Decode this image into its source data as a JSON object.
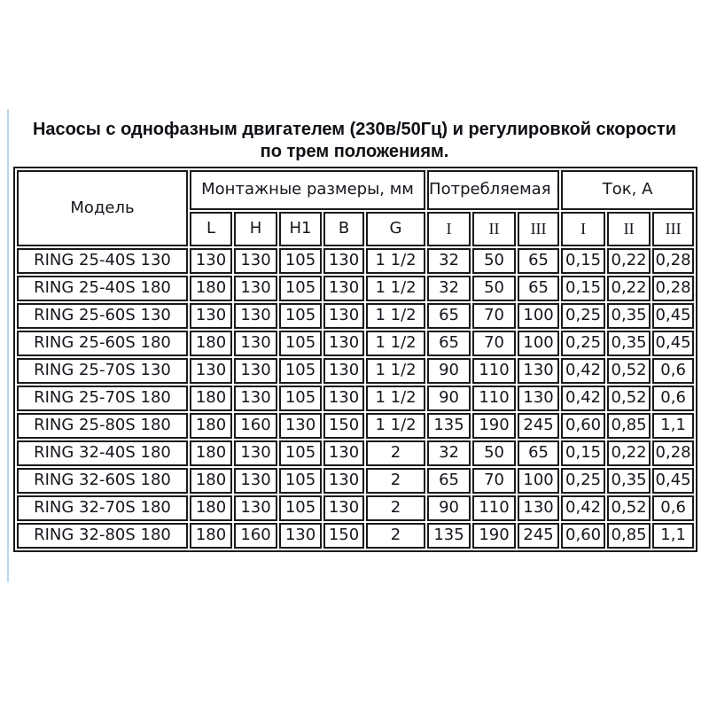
{
  "title": {
    "line1": "Насосы с однофазным двигателем (230в/50Гц) и регулировкой скорости",
    "line2": "по трем положениям."
  },
  "table": {
    "model_header": "Модель",
    "groups": {
      "dimensions": {
        "label": "Монтажные размеры, мм",
        "cols": [
          "L",
          "H",
          "H1",
          "B",
          "G"
        ]
      },
      "power": {
        "label": "Потребляемая мощность, Вт",
        "cols": [
          "I",
          "II",
          "III"
        ]
      },
      "current": {
        "label": "Ток, А",
        "cols": [
          "I",
          "II",
          "III"
        ]
      }
    },
    "rows": [
      {
        "model": "RING 25-40S 130",
        "dims": [
          "130",
          "130",
          "105",
          "130",
          "1 1/2"
        ],
        "power": [
          "32",
          "50",
          "65"
        ],
        "current": [
          "0,15",
          "0,22",
          "0,28"
        ]
      },
      {
        "model": "RING 25-40S 180",
        "dims": [
          "180",
          "130",
          "105",
          "130",
          "1 1/2"
        ],
        "power": [
          "32",
          "50",
          "65"
        ],
        "current": [
          "0,15",
          "0,22",
          "0,28"
        ]
      },
      {
        "model": "RING 25-60S 130",
        "dims": [
          "130",
          "130",
          "105",
          "130",
          "1 1/2"
        ],
        "power": [
          "65",
          "70",
          "100"
        ],
        "current": [
          "0,25",
          "0,35",
          "0,45"
        ]
      },
      {
        "model": "RING 25-60S 180",
        "dims": [
          "180",
          "130",
          "105",
          "130",
          "1 1/2"
        ],
        "power": [
          "65",
          "70",
          "100"
        ],
        "current": [
          "0,25",
          "0,35",
          "0,45"
        ]
      },
      {
        "model": "RING 25-70S 130",
        "dims": [
          "130",
          "130",
          "105",
          "130",
          "1 1/2"
        ],
        "power": [
          "90",
          "110",
          "130"
        ],
        "current": [
          "0,42",
          "0,52",
          "0,6"
        ]
      },
      {
        "model": "RING 25-70S 180",
        "dims": [
          "180",
          "130",
          "105",
          "130",
          "1 1/2"
        ],
        "power": [
          "90",
          "110",
          "130"
        ],
        "current": [
          "0,42",
          "0,52",
          "0,6"
        ]
      },
      {
        "model": "RING 25-80S 180",
        "dims": [
          "180",
          "160",
          "130",
          "150",
          "1 1/2"
        ],
        "power": [
          "135",
          "190",
          "245"
        ],
        "current": [
          "0,60",
          "0,85",
          "1,1"
        ]
      },
      {
        "model": "RING 32-40S 180",
        "dims": [
          "180",
          "130",
          "105",
          "130",
          "2"
        ],
        "power": [
          "32",
          "50",
          "65"
        ],
        "current": [
          "0,15",
          "0,22",
          "0,28"
        ]
      },
      {
        "model": "RING 32-60S 180",
        "dims": [
          "180",
          "130",
          "105",
          "130",
          "2"
        ],
        "power": [
          "65",
          "70",
          "100"
        ],
        "current": [
          "0,25",
          "0,35",
          "0,45"
        ]
      },
      {
        "model": "RING 32-70S 180",
        "dims": [
          "180",
          "130",
          "105",
          "130",
          "2"
        ],
        "power": [
          "90",
          "110",
          "130"
        ],
        "current": [
          "0,42",
          "0,52",
          "0,6"
        ]
      },
      {
        "model": "RING 32-80S 180",
        "dims": [
          "180",
          "160",
          "130",
          "150",
          "2"
        ],
        "power": [
          "135",
          "190",
          "245"
        ],
        "current": [
          "0,60",
          "0,85",
          "1,1"
        ]
      }
    ]
  },
  "colors": {
    "background": "#ffffff",
    "text": "#16161e",
    "border": "#1a1a1a",
    "accent_line": "#b5d7ef"
  }
}
